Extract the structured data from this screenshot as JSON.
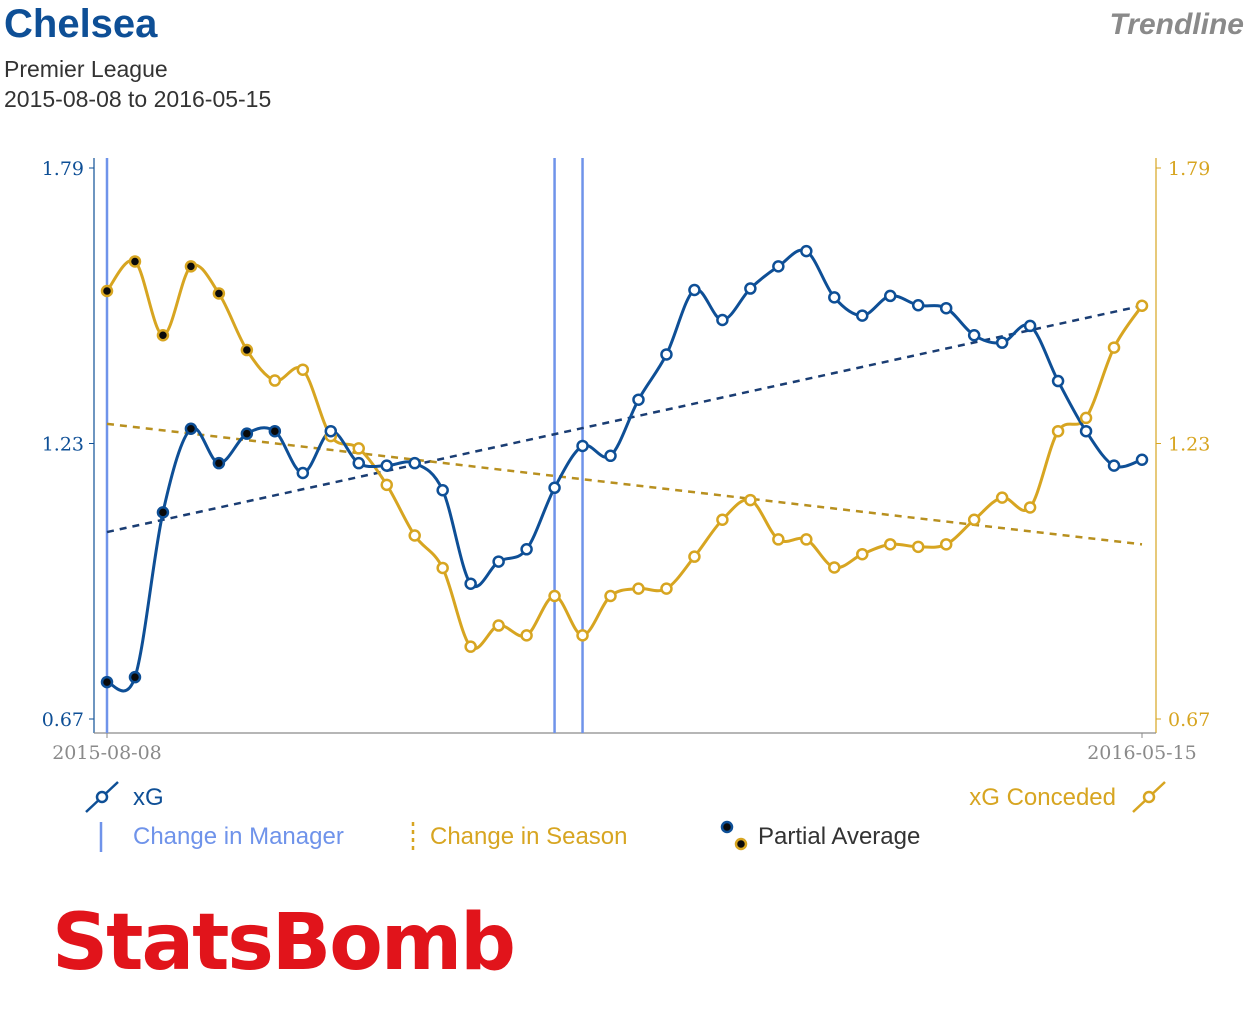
{
  "header": {
    "team": "Chelsea",
    "competition": "Premier League",
    "date_range": "2015-08-08 to 2016-05-15",
    "mode": "Trendline"
  },
  "colors": {
    "xg": "#0e4f96",
    "xg_conceded": "#d7a521",
    "xg_trend": "#1a3d73",
    "conceded_trend": "#b8901f",
    "manager_line": "#6f93ea",
    "logo": "#e1141b"
  },
  "chart_data": {
    "type": "line",
    "x_ticks": [
      "2015-08-08",
      "2016-05-15"
    ],
    "y_ticks": [
      "0.67",
      "1.23",
      "1.79"
    ],
    "ylim": [
      0.67,
      1.79
    ],
    "grid": false,
    "series": [
      {
        "name": "xG",
        "axis": "left",
        "values": [
          0.745,
          0.755,
          1.09,
          1.26,
          1.19,
          1.25,
          1.255,
          1.17,
          1.255,
          1.19,
          1.185,
          1.19,
          1.135,
          0.945,
          0.99,
          1.015,
          1.14,
          1.225,
          1.205,
          1.319,
          1.411,
          1.542,
          1.481,
          1.545,
          1.59,
          1.621,
          1.527,
          1.49,
          1.53,
          1.511,
          1.505,
          1.45,
          1.435,
          1.469,
          1.357,
          1.255,
          1.185,
          1.197
        ],
        "partial_average_points": 7
      },
      {
        "name": "xG Conceded",
        "axis": "right",
        "values": [
          1.54,
          1.6,
          1.45,
          1.59,
          1.535,
          1.42,
          1.358,
          1.38,
          1.245,
          1.22,
          1.146,
          1.043,
          0.977,
          0.817,
          0.86,
          0.84,
          0.92,
          0.84,
          0.92,
          0.935,
          0.935,
          1.0,
          1.075,
          1.115,
          1.035,
          1.035,
          0.978,
          1.005,
          1.025,
          1.02,
          1.025,
          1.075,
          1.12,
          1.1,
          1.255,
          1.282,
          1.425,
          1.51
        ],
        "partial_average_points": 6
      }
    ],
    "trendlines": [
      {
        "series": "xG",
        "start": 1.05,
        "end": 1.51
      },
      {
        "series": "xG Conceded",
        "start": 1.27,
        "end": 1.025
      }
    ],
    "manager_changes_at_match_index": [
      0,
      16,
      17
    ],
    "legend": {
      "xg": "xG",
      "xg_conceded": "xG Conceded",
      "manager": "Change in Manager",
      "season": "Change in Season",
      "partial": "Partial Average"
    }
  },
  "logo_text": "StatsBomb"
}
